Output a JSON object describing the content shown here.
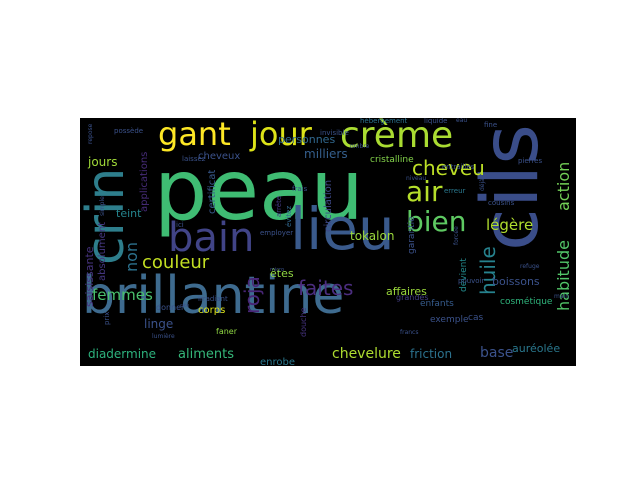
{
  "wordcloud": {
    "background": "#000000",
    "words": [
      {
        "text": "peau",
        "color": "#3fbc73"
      },
      {
        "text": "brillantine",
        "color": "#3e6b8f"
      },
      {
        "text": "cils",
        "color": "#3a4d89"
      },
      {
        "text": "lieu",
        "color": "#3a5a8c"
      },
      {
        "text": "crin",
        "color": "#2e7e8c"
      },
      {
        "text": "bain",
        "color": "#414487"
      },
      {
        "text": "crème",
        "color": "#aadc32"
      },
      {
        "text": "gant",
        "color": "#fde725"
      },
      {
        "text": "jour",
        "color": "#dde318"
      },
      {
        "text": "air",
        "color": "#b5de2b"
      },
      {
        "text": "bien",
        "color": "#5ec962"
      },
      {
        "text": "cheveu",
        "color": "#bddf26"
      },
      {
        "text": "couleur",
        "color": "#c2df23"
      },
      {
        "text": "faites",
        "color": "#4b2d7f"
      },
      {
        "text": "roja",
        "color": "#482576"
      },
      {
        "text": "femmes",
        "color": "#4ac16d"
      },
      {
        "text": "huile",
        "color": "#26828e"
      },
      {
        "text": "habitude",
        "color": "#52c569"
      },
      {
        "text": "action",
        "color": "#73d056"
      },
      {
        "text": "légère",
        "color": "#b0dd2f"
      },
      {
        "text": "jours",
        "color": "#a0da39"
      },
      {
        "text": "non",
        "color": "#2c728e"
      },
      {
        "text": "teint",
        "color": "#25858e"
      },
      {
        "text": "linge",
        "color": "#3b528b"
      },
      {
        "text": "aliments",
        "color": "#35b779"
      },
      {
        "text": "diadermine",
        "color": "#2db27d"
      },
      {
        "text": "chevelure",
        "color": "#addc30"
      },
      {
        "text": "friction",
        "color": "#2c728e"
      },
      {
        "text": "base",
        "color": "#3b528b"
      },
      {
        "text": "auréolée",
        "color": "#2a788e"
      },
      {
        "text": "boissons",
        "color": "#3b528b"
      },
      {
        "text": "tokalon",
        "color": "#9bd93c"
      },
      {
        "text": "milliers",
        "color": "#355f8d"
      },
      {
        "text": "personnes",
        "color": "#31688e"
      },
      {
        "text": "cheveux",
        "color": "#3b528b"
      },
      {
        "text": "applications",
        "color": "#472c7a"
      },
      {
        "text": "absolument",
        "color": "#453781"
      },
      {
        "text": "saisissante",
        "color": "#46337e"
      },
      {
        "text": "certificat",
        "color": "#38598c"
      },
      {
        "text": "affaires",
        "color": "#9bd93c"
      },
      {
        "text": "enrobe",
        "color": "#2a788e"
      },
      {
        "text": "corps",
        "color": "#dde318"
      },
      {
        "text": "êtes",
        "color": "#90d743"
      },
      {
        "text": "circulation",
        "color": "#3e4989"
      },
      {
        "text": "cristalline",
        "color": "#84d44b"
      },
      {
        "text": "garantie",
        "color": "#3b528b"
      },
      {
        "text": "devient",
        "color": "#238a8d"
      },
      {
        "text": "exemple",
        "color": "#3b528b"
      },
      {
        "text": "cas",
        "color": "#3b528b"
      },
      {
        "text": "enfants",
        "color": "#365c8d"
      },
      {
        "text": "grandes",
        "color": "#433e85"
      },
      {
        "text": "cosmétique",
        "color": "#2fb47c"
      },
      {
        "text": "douche",
        "color": "#46337e"
      },
      {
        "text": "faner",
        "color": "#90d743"
      },
      {
        "text": "irradiant",
        "color": "#3b528b"
      },
      {
        "text": "employer",
        "color": "#3b528b"
      },
      {
        "text": "évitez",
        "color": "#31688e"
      },
      {
        "text": "frais",
        "color": "#3b528b"
      },
      {
        "text": "arrête",
        "color": "#443983"
      },
      {
        "text": "invisible",
        "color": "#3b528b"
      },
      {
        "text": "hébergement",
        "color": "#2c728e"
      },
      {
        "text": "liquide",
        "color": "#3b528b"
      },
      {
        "text": "fine",
        "color": "#3b528b"
      },
      {
        "text": "cousins",
        "color": "#3b528b"
      },
      {
        "text": "pierres",
        "color": "#3b528b"
      },
      {
        "text": "entrailles",
        "color": "#3b528b"
      },
      {
        "text": "erreur",
        "color": "#2a788e"
      },
      {
        "text": "pouvoir",
        "color": "#3b528b"
      },
      {
        "text": "ici",
        "color": "#3b528b"
      },
      {
        "text": "laissez",
        "color": "#3b528b"
      },
      {
        "text": "possède",
        "color": "#3b528b"
      },
      {
        "text": "donner",
        "color": "#3b528b"
      },
      {
        "text": "prix",
        "color": "#3b528b"
      },
      {
        "text": "lumière",
        "color": "#3b528b"
      },
      {
        "text": "main",
        "color": "#3b528b"
      },
      {
        "text": "refuge",
        "color": "#3b528b"
      },
      {
        "text": "francs",
        "color": "#3b528b"
      },
      {
        "text": "forcée",
        "color": "#3b528b"
      },
      {
        "text": "niveau",
        "color": "#3b528b"
      },
      {
        "text": "ombre",
        "color": "#3b528b"
      },
      {
        "text": "micro",
        "color": "#3b528b"
      },
      {
        "text": "cité",
        "color": "#3b528b"
      },
      {
        "text": "eau",
        "color": "#3b528b"
      },
      {
        "text": "déjà",
        "color": "#3b528b"
      },
      {
        "text": "simple",
        "color": "#3b528b"
      },
      {
        "text": "repose",
        "color": "#3b528b"
      }
    ]
  }
}
